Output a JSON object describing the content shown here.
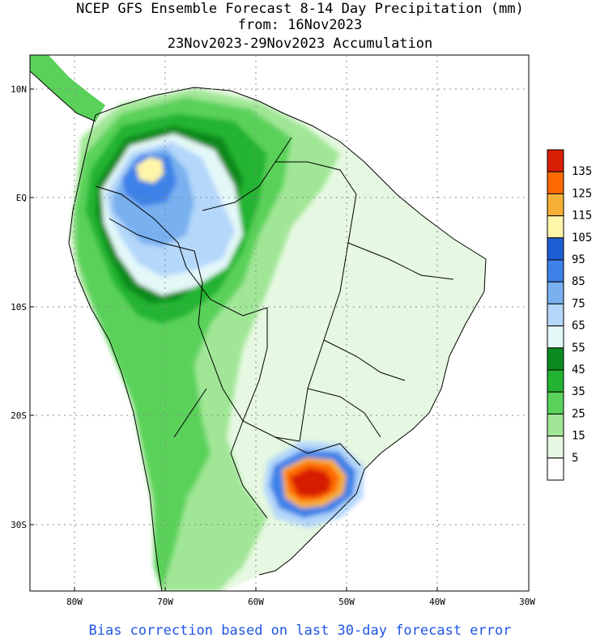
{
  "title": {
    "line1": "NCEP GFS Ensemble Forecast 8-14 Day Precipitation (mm)",
    "line2": "from: 16Nov2023",
    "line3": "23Nov2023-29Nov2023 Accumulation"
  },
  "footer": "Bias correction based on last 30-day forecast error",
  "lat_labels": [
    "10N",
    "EQ",
    "10S",
    "20S",
    "30S"
  ],
  "lon_labels": [
    "80W",
    "70W",
    "60W",
    "50W",
    "40W",
    "30W"
  ],
  "legend": {
    "labels": [
      "135",
      "125",
      "115",
      "105",
      "95",
      "85",
      "75",
      "65",
      "55",
      "45",
      "35",
      "25",
      "15",
      "5"
    ],
    "colors": [
      "#d81e05",
      "#ff6a00",
      "#f5b035",
      "#fff5a8",
      "#1e5ed4",
      "#3c82e8",
      "#78b0f0",
      "#b4d7fa",
      "#e4f8f8",
      "#0a8a1e",
      "#23b432",
      "#5ad25a",
      "#a0e696",
      "#e6f8e1",
      "#ffffff"
    ]
  }
}
